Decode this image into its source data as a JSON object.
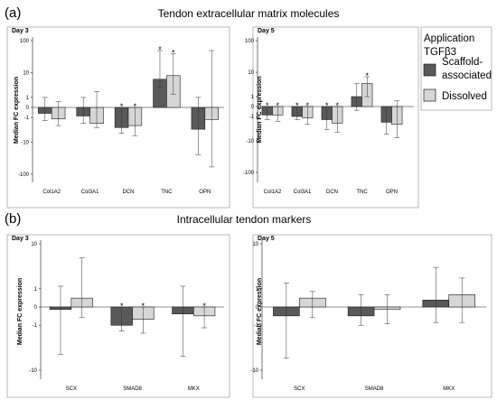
{
  "colors": {
    "series1": "#595959",
    "series2": "#d6d6d6",
    "stroke": "#1a1a1a"
  },
  "figure": {
    "panel_a_letter": "(a)",
    "panel_a_title": "Tendon extracellular matrix molecules",
    "panel_b_letter": "(b)",
    "panel_b_title": "Intracellular tendon markers"
  },
  "legend": {
    "heading_line1": "Application",
    "heading_line2": "TGFβ3",
    "item1_line1": "Scaffold-",
    "item1_line2": "associated",
    "item2": "Dissolved"
  },
  "chart_data": [
    {
      "type": "bar",
      "panel_label": "Day 3",
      "ylabel": "Median FC expression",
      "scale": "symlog",
      "ylim": [
        -300,
        300
      ],
      "ytick_labels": [
        "100",
        "10",
        "1",
        "0",
        "-1",
        "-10",
        "-100"
      ],
      "categories": [
        "Col1A2",
        "Col3A1",
        "DCN",
        "TNC",
        "OPN"
      ],
      "series": [
        {
          "name": "Scaffold-associated",
          "values": [
            -0.5,
            -0.8,
            -3,
            6,
            -3.5
          ],
          "err_low": [
            -1.5,
            -2,
            -5,
            3,
            -25
          ],
          "err_high": [
            1,
            1,
            0,
            50,
            1
          ],
          "significant": [
            false,
            false,
            true,
            true,
            false
          ]
        },
        {
          "name": "Dissolved",
          "values": [
            -1.2,
            -2,
            -2.5,
            8,
            -1.3
          ],
          "err_low": [
            -2.5,
            -3,
            -6,
            1.5,
            -60
          ],
          "err_high": [
            0.5,
            2,
            0,
            40,
            50
          ],
          "significant": [
            false,
            false,
            true,
            true,
            false
          ]
        }
      ]
    },
    {
      "type": "bar",
      "panel_label": "Day 5",
      "ylabel": "Median FC expression",
      "scale": "symlog",
      "ylim": [
        -300,
        300
      ],
      "ytick_labels": [
        "100",
        "10",
        "1",
        "0",
        "-1",
        "-10",
        "-100"
      ],
      "categories": [
        "Col1A2",
        "Col3A1",
        "DCN",
        "TNC",
        "OPN"
      ],
      "series": [
        {
          "name": "Scaffold-associated",
          "values": [
            -0.8,
            -1,
            -1.5,
            1,
            -2
          ],
          "err_low": [
            -1.5,
            -1.5,
            -4,
            -0.3,
            -6
          ],
          "err_high": [
            0,
            0,
            0,
            4,
            0
          ],
          "significant": [
            true,
            true,
            true,
            false,
            false
          ]
        },
        {
          "name": "Dissolved",
          "values": [
            -0.8,
            -1.2,
            -2.2,
            4,
            -2.5
          ],
          "err_low": [
            -1.8,
            -2.5,
            -5,
            1,
            -8
          ],
          "err_high": [
            0,
            0,
            0,
            7,
            0.5
          ],
          "significant": [
            true,
            true,
            true,
            true,
            false
          ]
        }
      ]
    },
    {
      "type": "bar",
      "panel_label": "Day 3",
      "ylabel": "Median FC expression",
      "scale": "symlog",
      "ylim": [
        -20,
        20
      ],
      "ytick_labels": [
        "10",
        "1",
        "0",
        "-1",
        "-10"
      ],
      "categories": [
        "SCX",
        "SMAD8",
        "MKX"
      ],
      "series": [
        {
          "name": "Scaffold-associated",
          "values": [
            -0.1,
            -1,
            -0.3
          ],
          "err_low": [
            -5,
            -1.5,
            -5.5
          ],
          "err_high": [
            1.2,
            0,
            1.2
          ],
          "significant": [
            false,
            true,
            false
          ]
        },
        {
          "name": "Dissolved",
          "values": [
            0.4,
            -0.6,
            -0.4
          ],
          "err_low": [
            -0.5,
            -1.7,
            -1.2
          ],
          "err_high": [
            5.5,
            0,
            0
          ],
          "significant": [
            false,
            true,
            true
          ]
        }
      ]
    },
    {
      "type": "bar",
      "panel_label": "Day 5",
      "ylabel": "Median FC expression",
      "scale": "symlog",
      "ylim": [
        -20,
        20
      ],
      "ytick_labels": [
        "10",
        "1",
        "0",
        "-1",
        "-10"
      ],
      "categories": [
        "SCX",
        "SMAD8",
        "MKX"
      ],
      "series": [
        {
          "name": "Scaffold-associated",
          "values": [
            -0.4,
            -0.4,
            0.3
          ],
          "err_low": [
            -6,
            -1,
            -0.8
          ],
          "err_high": [
            1.5,
            0.6,
            3.5
          ],
          "significant": [
            false,
            false,
            false
          ]
        },
        {
          "name": "Dissolved",
          "values": [
            0.4,
            -0.1,
            0.6
          ],
          "err_low": [
            -0.5,
            -0.9,
            -0.8
          ],
          "err_high": [
            0.8,
            0.6,
            2
          ],
          "significant": [
            false,
            false,
            false
          ]
        }
      ]
    }
  ]
}
